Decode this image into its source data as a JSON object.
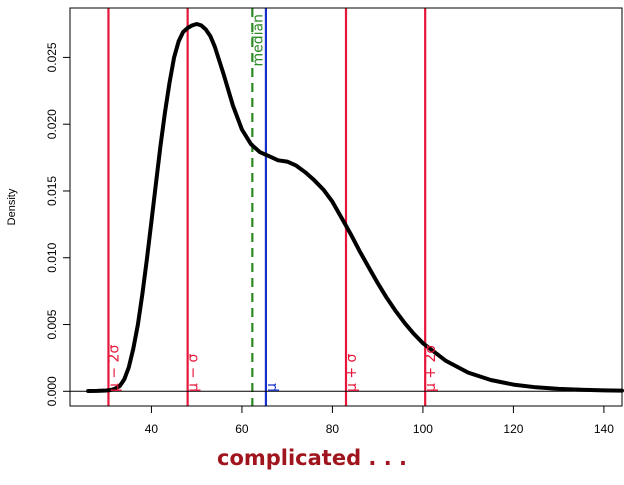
{
  "caption": {
    "text": "complicated . . .",
    "color": "#A0141E"
  },
  "chart_data": {
    "type": "line",
    "title": "",
    "xlabel": "",
    "ylabel": "Density",
    "xlim": [
      22,
      144
    ],
    "ylim": [
      -0.0011,
      0.0287
    ],
    "x_ticks": [
      "40",
      "60",
      "80",
      "100",
      "120",
      "140"
    ],
    "y_ticks": [
      "0.000",
      "0.005",
      "0.010",
      "0.015",
      "0.020",
      "0.025"
    ],
    "grid": false,
    "baseline": 0,
    "series": [
      {
        "color": "#000000",
        "x": [
          26,
          28,
          30,
          31,
          32,
          33,
          34,
          35,
          36,
          37,
          38,
          39,
          40,
          41,
          42,
          43,
          44,
          45,
          46,
          47,
          48,
          49,
          50,
          51,
          52,
          53,
          54,
          56,
          58,
          60,
          62,
          64,
          66,
          68,
          70,
          72,
          74,
          76,
          78,
          80,
          82,
          84,
          86,
          88,
          90,
          92,
          94,
          96,
          98,
          100,
          105,
          110,
          115,
          120,
          125,
          130,
          135,
          140,
          144
        ],
        "values": [
          2e-05,
          3e-05,
          6e-05,
          0.0001,
          0.0002,
          0.0004,
          0.0009,
          0.0018,
          0.0032,
          0.005,
          0.0073,
          0.0099,
          0.0127,
          0.0156,
          0.0184,
          0.0209,
          0.0231,
          0.025,
          0.0262,
          0.0269,
          0.0272,
          0.0274,
          0.0275,
          0.0274,
          0.0271,
          0.0266,
          0.0258,
          0.0237,
          0.0214,
          0.0196,
          0.0185,
          0.0179,
          0.0176,
          0.0173,
          0.0172,
          0.0169,
          0.0164,
          0.0158,
          0.0151,
          0.0142,
          0.013,
          0.0118,
          0.0105,
          0.0093,
          0.0081,
          0.007,
          0.006,
          0.0051,
          0.0043,
          0.0036,
          0.0023,
          0.0014,
          0.00085,
          0.0005,
          0.0003,
          0.00018,
          0.00011,
          7e-05,
          5e-05
        ]
      }
    ],
    "vlines": [
      {
        "x": 30.5,
        "label": "μ − 2σ",
        "color": "#E8153A",
        "style": "solid"
      },
      {
        "x": 48,
        "label": "μ − σ",
        "color": "#E8153A",
        "style": "solid"
      },
      {
        "x": 62.3,
        "label": "median",
        "color": "#2A8A22",
        "style": "dashed"
      },
      {
        "x": 65.3,
        "label": "μ",
        "color": "#1530C8",
        "style": "solid"
      },
      {
        "x": 83,
        "label": "μ + σ",
        "color": "#E8153A",
        "style": "solid"
      },
      {
        "x": 100.5,
        "label": "μ + 2σ",
        "color": "#E8153A",
        "style": "solid"
      }
    ]
  }
}
